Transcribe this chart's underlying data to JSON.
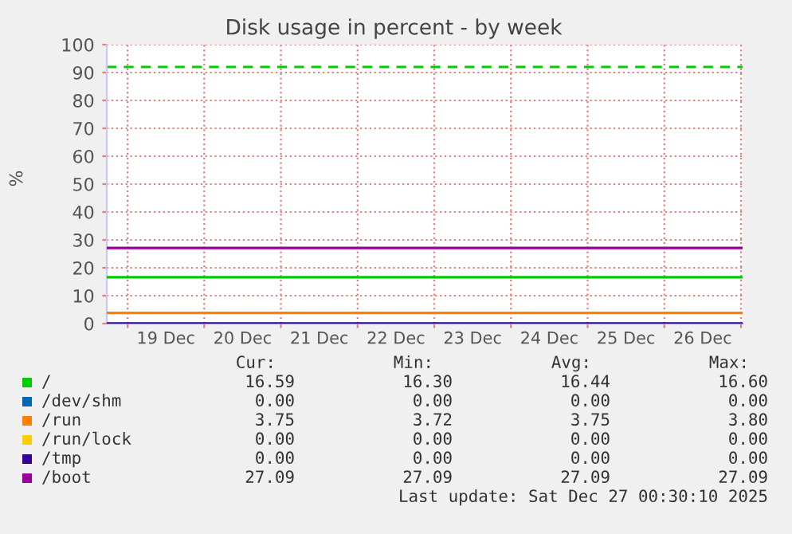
{
  "chart_data": {
    "type": "line",
    "title": "Disk usage in percent - by week",
    "ylabel": "%",
    "xlim": [
      "2025-12-18T17:30",
      "2025-12-27T00:30"
    ],
    "ylim": [
      0,
      100
    ],
    "yticks": [
      0,
      10,
      20,
      30,
      40,
      50,
      60,
      70,
      80,
      90,
      100
    ],
    "xticks": [
      {
        "value": "2025-12-19T00:00",
        "label": null
      },
      {
        "value": "2025-12-19T12:00",
        "label": "19 Dec"
      },
      {
        "value": "2025-12-20T00:00",
        "label": null
      },
      {
        "value": "2025-12-20T12:00",
        "label": "20 Dec"
      },
      {
        "value": "2025-12-21T00:00",
        "label": null
      },
      {
        "value": "2025-12-21T12:00",
        "label": "21 Dec"
      },
      {
        "value": "2025-12-22T00:00",
        "label": null
      },
      {
        "value": "2025-12-22T12:00",
        "label": "22 Dec"
      },
      {
        "value": "2025-12-23T00:00",
        "label": null
      },
      {
        "value": "2025-12-23T12:00",
        "label": "23 Dec"
      },
      {
        "value": "2025-12-24T00:00",
        "label": null
      },
      {
        "value": "2025-12-24T12:00",
        "label": "24 Dec"
      },
      {
        "value": "2025-12-25T00:00",
        "label": null
      },
      {
        "value": "2025-12-25T12:00",
        "label": "25 Dec"
      },
      {
        "value": "2025-12-26T00:00",
        "label": null
      },
      {
        "value": "2025-12-26T12:00",
        "label": "26 Dec"
      },
      {
        "value": "2025-12-27T00:00",
        "label": null
      }
    ],
    "grid": true,
    "legend": "bottom",
    "marker": "none",
    "line_style": "solid",
    "series": [
      {
        "name": "/",
        "color": "#00cc00",
        "x": [
          "2025-12-18T17:30",
          "2025-12-27T00:30"
        ],
        "values": [
          16.6,
          16.6
        ]
      },
      {
        "name": "/dev/shm",
        "color": "#0066b3",
        "values": [
          null,
          null
        ]
      },
      {
        "name": "/run",
        "color": "#ff8000",
        "x": [
          "2025-12-18T17:30",
          "2025-12-27T00:30"
        ],
        "values": [
          3.8,
          3.8
        ]
      },
      {
        "name": "/run/lock",
        "color": "#ffcc00",
        "values": [
          null,
          null
        ]
      },
      {
        "name": "/tmp",
        "color": "#330099",
        "x": [
          "2025-12-18T17:30",
          "2025-12-27T00:30"
        ],
        "values": [
          0,
          0
        ]
      },
      {
        "name": "/boot",
        "color": "#990099",
        "x": [
          "2025-12-18T17:30",
          "2025-12-27T00:30"
        ],
        "values": [
          27.1,
          27.1
        ]
      }
    ],
    "ref_lines": [
      {
        "axis": "y",
        "value": 92,
        "label": null,
        "color": "#00cc00",
        "line_style": "dashed"
      }
    ],
    "annotations": [
      "Cur:",
      "Min:",
      "Avg:",
      "Max:",
      "16.59",
      "16.30",
      "16.44",
      "16.60",
      "0.00",
      "0.00",
      "0.00",
      "0.00",
      "3.75",
      "3.72",
      "3.75",
      "3.80",
      "0.00",
      "0.00",
      "0.00",
      "0.00",
      "0.00",
      "0.00",
      "0.00",
      "0.00",
      "27.09",
      "27.09",
      "27.09",
      "27.09",
      "Last update: Sat Dec 27 00:30:10 2025"
    ]
  }
}
